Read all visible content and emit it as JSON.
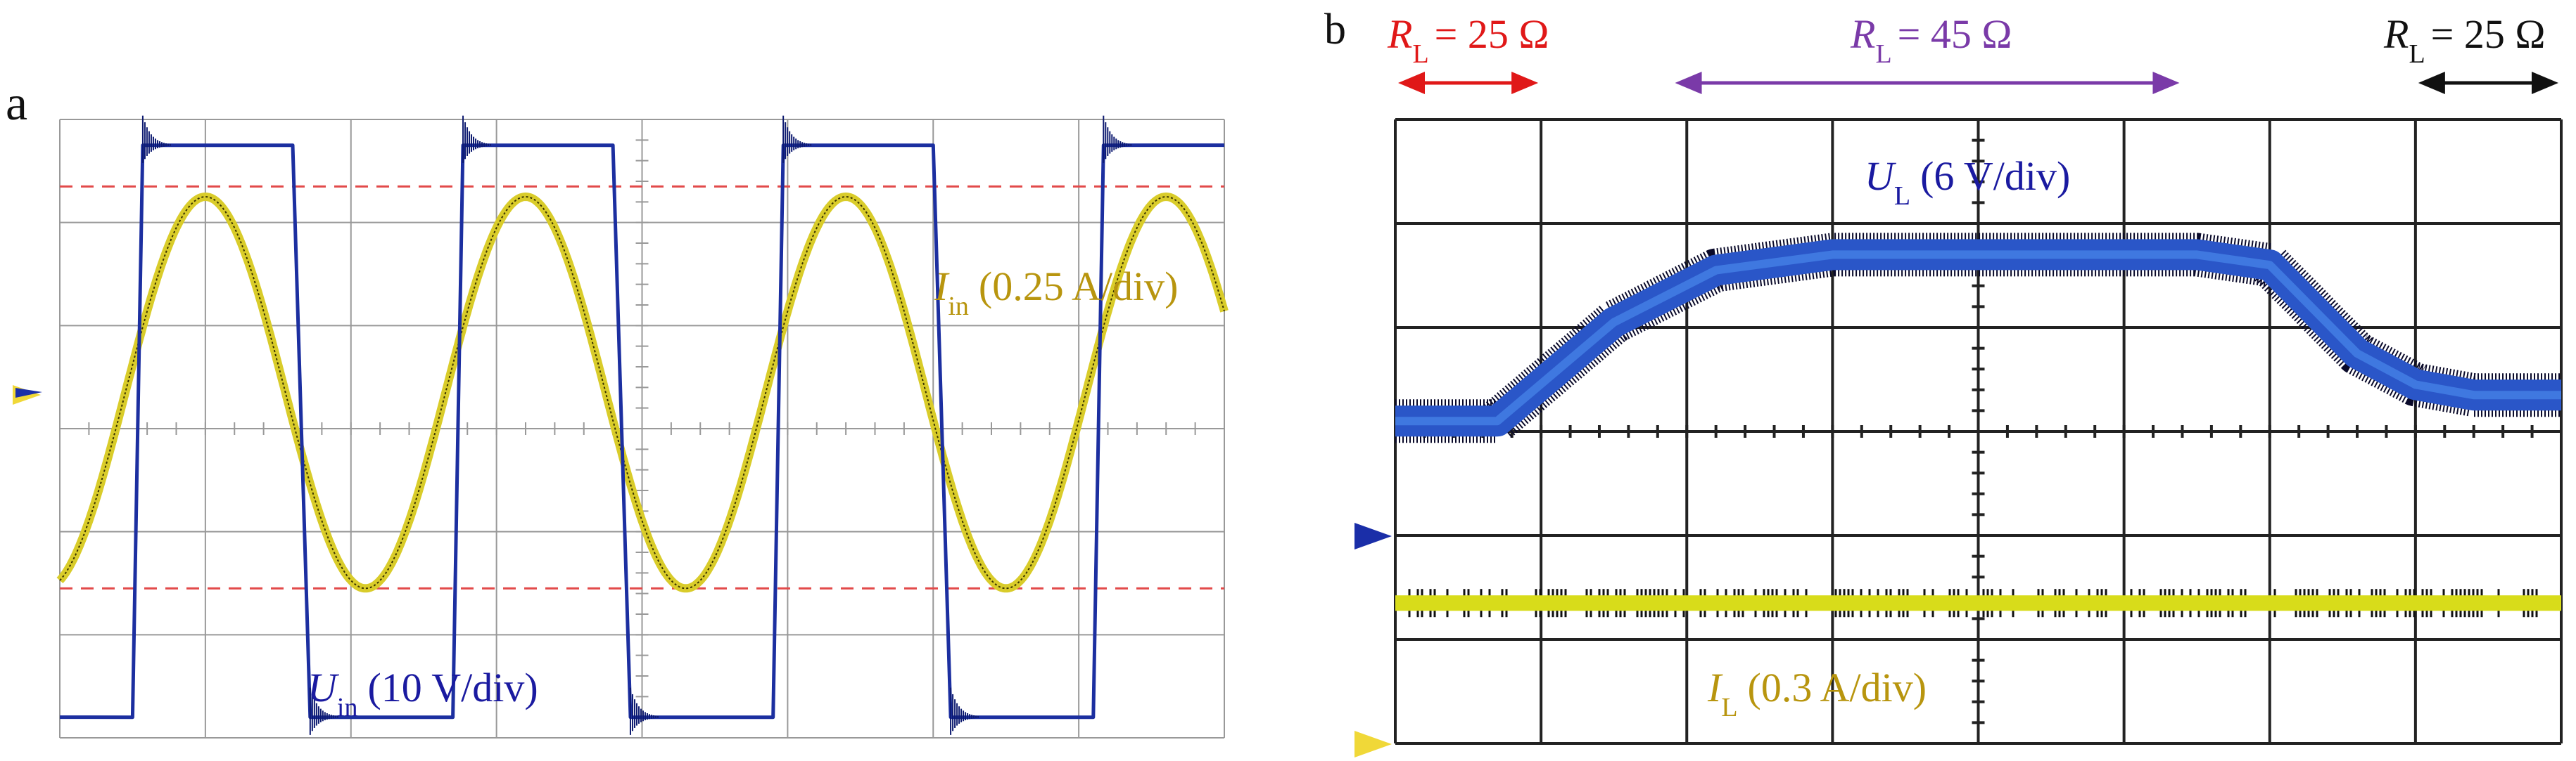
{
  "figure": {
    "panel_a_letter": "a",
    "panel_b_letter": "b"
  },
  "colors": {
    "grid": "#999999",
    "grid_b": "#222222",
    "voltage_a": "#1c2fa0",
    "current_a": "#d9cc2a",
    "ref_dashed": "#e24a4a",
    "voltage_b": "#2a56c8",
    "current_b": "#d8dc1a",
    "label_voltage": "#1a1aa0",
    "label_current": "#b8950e",
    "rl_25_first": "#e01818",
    "rl_45": "#7a3aa8",
    "rl_25_last": "#111111",
    "marker_blue": "#1a2ea8",
    "marker_yellow": "#f0d838"
  },
  "chart_data": [
    {
      "panel": "a",
      "type": "line",
      "title": "",
      "xlabel": "",
      "ylabel": "",
      "grid": true,
      "divisions": {
        "x": 8,
        "y": 6
      },
      "xlim": [
        0,
        8
      ],
      "ylim": [
        -3,
        3
      ],
      "series": [
        {
          "name": "U",
          "name_sub": "in",
          "scale": "(10 V/div)",
          "shape": "square",
          "amplitude_div": 2.4,
          "period_div": 2.2,
          "first_rise_div": 0.5,
          "zero_ref_div": 0.35
        },
        {
          "name": "I",
          "name_sub": "in",
          "scale": "(0.25 A/div)",
          "shape": "sine",
          "amplitude_div": 1.9,
          "period_div": 2.2,
          "peak_at_div": 1.0
        }
      ],
      "reference_lines_div": [
        2.35,
        -1.55
      ]
    },
    {
      "panel": "b",
      "type": "line",
      "title": "",
      "xlabel": "",
      "ylabel": "",
      "grid": true,
      "divisions": {
        "x": 8,
        "y": 6
      },
      "xlim": [
        0,
        8
      ],
      "ylim": [
        -3,
        3
      ],
      "series": [
        {
          "name": "U",
          "name_sub": "L",
          "scale": "(6 V/div)",
          "x": [
            0,
            0.7,
            1.5,
            2.2,
            3.0,
            5.5,
            6.0,
            6.6,
            7.0,
            7.4,
            8.0
          ],
          "y": [
            0.1,
            0.1,
            1.05,
            1.55,
            1.7,
            1.7,
            1.6,
            0.75,
            0.45,
            0.35,
            0.35
          ]
        },
        {
          "name": "I",
          "name_sub": "L",
          "scale": "(0.3 A/div)",
          "x": [
            0,
            8
          ],
          "y": [
            -1.65,
            -1.65
          ]
        }
      ],
      "load_annotations": [
        {
          "label": "R",
          "sub": "L",
          "value": "= 25 Ω",
          "x_start": 0.0,
          "x_end": 1.0
        },
        {
          "label": "R",
          "sub": "L",
          "value": "= 45 Ω",
          "x_start": 1.9,
          "x_end": 5.4
        },
        {
          "label": "R",
          "sub": "L",
          "value": "= 25 Ω",
          "x_start": 7.0,
          "x_end": 8.0
        }
      ]
    }
  ]
}
